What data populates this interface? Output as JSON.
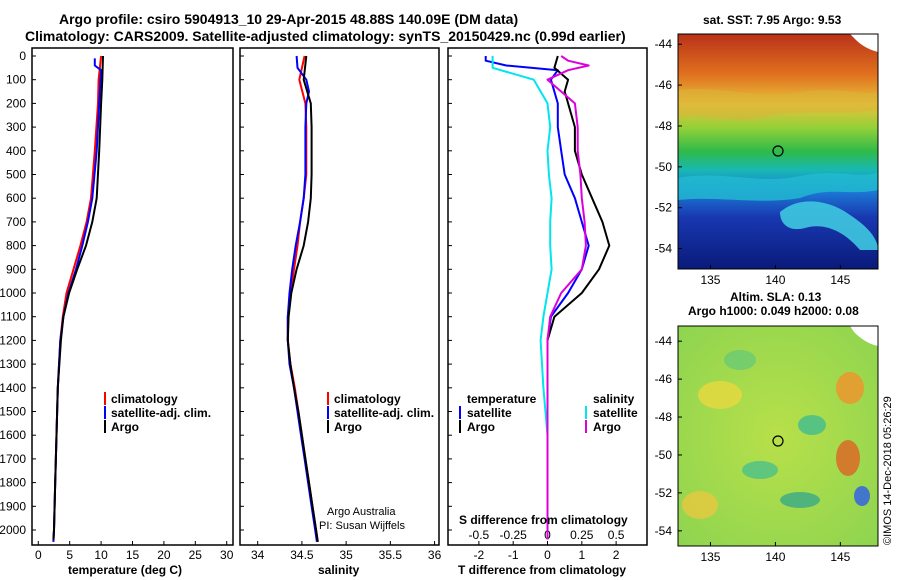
{
  "title": {
    "line1": "Argo profile: csiro 5904913_10 29-Apr-2015 48.88S 140.09E (DM data)",
    "line2": "Climatology: CARS2009. Satellite-adjusted climatology: synTS_20150429.nc (0.99d earlier)"
  },
  "colors": {
    "climatology": "#ff0000",
    "satellite": "#0000ff",
    "argo": "#000000",
    "sat_salinity": "#00e5ee",
    "argo_salinity": "#dd00dd"
  },
  "depth_ticks": [
    "0",
    "100",
    "200",
    "300",
    "400",
    "500",
    "600",
    "700",
    "800",
    "900",
    "1000",
    "1100",
    "1200",
    "1300",
    "1400",
    "1500",
    "1600",
    "1700",
    "1800",
    "1900",
    "2000"
  ],
  "panel_temp": {
    "xlabel": "temperature (deg C)",
    "xticks": [
      "0",
      "5",
      "10",
      "15",
      "20",
      "25",
      "30"
    ],
    "legend": [
      "climatology",
      "satellite-adj. clim.",
      "Argo"
    ]
  },
  "panel_sal": {
    "xlabel": "salinity",
    "xticks": [
      "34",
      "34.5",
      "35",
      "35.5",
      "36"
    ],
    "legend": [
      "climatology",
      "satellite-adj. clim.",
      "Argo"
    ],
    "credit1": "Argo Australia",
    "credit2": "PI: Susan Wijffels"
  },
  "panel_diff": {
    "xlabel": "T difference from climatology",
    "xticks": [
      "-2",
      "-1",
      "0",
      "1",
      "2"
    ],
    "s_label": "S difference from climatology",
    "s_ticks": [
      "-0.5",
      "-0.25",
      "0",
      "0.25",
      "0.5"
    ],
    "legend_temp_head": "temperature",
    "legend_sal_head": "salinity",
    "legend_sat": "satellite",
    "legend_argo": "Argo"
  },
  "map_sst": {
    "title": "sat. SST: 7.95 Argo: 9.53",
    "yticks": [
      "-44",
      "-46",
      "-48",
      "-50",
      "-52",
      "-54"
    ],
    "xticks": [
      "135",
      "140",
      "145"
    ]
  },
  "map_sla": {
    "title1": "Altim. SLA: 0.13",
    "title2": "Argo h1000: 0.049 h2000: 0.08",
    "yticks": [
      "-44",
      "-46",
      "-48",
      "-50",
      "-52",
      "-54"
    ],
    "xticks": [
      "135",
      "140",
      "145"
    ]
  },
  "stamp": "©IMOS 14-Dec-2018 05:26:29",
  "chart_data": [
    {
      "type": "line",
      "xlabel": "temperature (deg C)",
      "xlim": [
        -1,
        31
      ],
      "ylim": [
        2050,
        0
      ],
      "series": [
        {
          "name": "climatology",
          "depth": [
            0,
            100,
            200,
            400,
            600,
            700,
            800,
            900,
            1000,
            1100,
            1200,
            1400,
            1600,
            1800,
            2000,
            2050
          ],
          "values": [
            10,
            9.6,
            9.5,
            9.0,
            8.4,
            7.7,
            6.7,
            5.6,
            4.5,
            3.9,
            3.5,
            3.1,
            2.9,
            2.7,
            2.5,
            2.4
          ]
        },
        {
          "name": "satellite-adj. clim.",
          "depth": [
            10,
            40,
            60,
            100,
            200,
            400,
            600,
            700,
            800,
            900,
            1000,
            1100,
            1200,
            1400,
            1600,
            1800,
            2000,
            2050
          ],
          "values": [
            9,
            9,
            10,
            9.9,
            9.7,
            9.3,
            8.6,
            7.9,
            7.0,
            6.0,
            4.8,
            4.0,
            3.5,
            3.1,
            2.9,
            2.7,
            2.5,
            2.4
          ]
        },
        {
          "name": "Argo",
          "depth": [
            0,
            100,
            200,
            400,
            600,
            700,
            800,
            900,
            1000,
            1100,
            1200,
            1400,
            1600,
            1800,
            2000,
            2040
          ],
          "values": [
            10.3,
            10.2,
            10.0,
            9.7,
            9.3,
            8.6,
            7.6,
            6.2,
            4.9,
            4.0,
            3.6,
            3.1,
            2.9,
            2.7,
            2.5,
            2.4
          ]
        }
      ]
    },
    {
      "type": "line",
      "xlabel": "salinity",
      "xlim": [
        33.8,
        36.05
      ],
      "ylim": [
        2050,
        0
      ],
      "series": [
        {
          "name": "climatology",
          "depth": [
            0,
            100,
            200,
            300,
            500,
            600,
            700,
            800,
            900,
            1000,
            1100,
            1200,
            1300,
            1400,
            1500,
            1600,
            1700,
            1800,
            1900,
            2000,
            2050
          ],
          "values": [
            34.53,
            34.47,
            34.54,
            34.55,
            34.55,
            34.52,
            34.48,
            34.45,
            34.41,
            34.37,
            34.34,
            34.34,
            34.37,
            34.42,
            34.46,
            34.5,
            34.54,
            34.58,
            34.62,
            34.66,
            34.68
          ]
        },
        {
          "name": "satellite-adj. clim.",
          "depth": [
            0,
            50,
            100,
            150,
            200,
            300,
            500,
            600,
            700,
            800,
            900,
            1000,
            1100,
            1200,
            1300,
            1400,
            1500,
            1600,
            1700,
            1800,
            1900,
            2000,
            2050
          ],
          "values": [
            34.44,
            34.45,
            34.55,
            34.58,
            34.55,
            34.54,
            34.54,
            34.52,
            34.48,
            34.43,
            34.39,
            34.36,
            34.34,
            34.34,
            34.36,
            34.41,
            34.45,
            34.49,
            34.53,
            34.57,
            34.61,
            34.65,
            34.67
          ]
        },
        {
          "name": "Argo",
          "depth": [
            0,
            100,
            150,
            200,
            300,
            500,
            600,
            700,
            800,
            900,
            1000,
            1100,
            1200,
            1300,
            1400,
            1500,
            1600,
            1700,
            1800,
            1900,
            2000,
            2050
          ],
          "values": [
            34.55,
            34.52,
            34.56,
            34.6,
            34.61,
            34.61,
            34.6,
            34.57,
            34.52,
            34.44,
            34.38,
            34.35,
            34.34,
            34.37,
            34.41,
            34.46,
            34.5,
            34.54,
            34.58,
            34.62,
            34.66,
            34.68
          ]
        }
      ]
    },
    {
      "type": "line",
      "xlabel": "T difference from climatology",
      "xlim": [
        -2.9,
        2.9
      ],
      "ylim": [
        2050,
        0
      ],
      "series": [
        {
          "name": "temperature satellite",
          "depth": [
            0,
            20,
            40,
            60,
            100,
            200,
            300,
            400,
            500,
            600,
            700,
            800,
            900,
            1000,
            1100,
            1200,
            1400,
            1600,
            1800,
            2000,
            2040
          ],
          "values": [
            -1.8,
            -1.8,
            -1.2,
            0.3,
            0.1,
            0.3,
            0.3,
            0.4,
            0.5,
            0.8,
            1.0,
            1.2,
            1.0,
            0.6,
            0.1,
            0.0,
            0.0,
            0.0,
            0.0,
            0.0,
            0.0
          ]
        },
        {
          "name": "temperature Argo",
          "depth": [
            0,
            50,
            100,
            150,
            200,
            300,
            400,
            500,
            600,
            700,
            800,
            900,
            1000,
            1100,
            1200,
            1400,
            1600,
            1800,
            2000,
            2040
          ],
          "values": [
            0.3,
            0.2,
            0.6,
            0.5,
            0.6,
            0.8,
            0.8,
            1.0,
            1.3,
            1.6,
            1.8,
            1.5,
            1.0,
            0.2,
            0.0,
            0.0,
            0.0,
            0.0,
            0.0,
            0.0
          ]
        },
        {
          "name": "salinity satellite",
          "depth": [
            0,
            50,
            100,
            200,
            300,
            400,
            500,
            600,
            700,
            800,
            900,
            1000,
            1100,
            1200,
            1400,
            1600,
            1800,
            2000,
            2040
          ],
          "values": [
            -0.4,
            -0.4,
            -0.1,
            0.0,
            0.02,
            0.0,
            0.01,
            0.03,
            0.02,
            0.02,
            0.03,
            0.0,
            -0.03,
            -0.05,
            -0.03,
            0.0,
            0.0,
            0.0,
            0.0
          ]
        },
        {
          "name": "salinity Argo",
          "depth": [
            0,
            20,
            40,
            60,
            100,
            200,
            300,
            400,
            500,
            600,
            700,
            800,
            900,
            1000,
            1100,
            1200,
            1400,
            1600,
            1800,
            2000,
            2040
          ],
          "values": [
            0.1,
            0.15,
            0.3,
            0.15,
            0.0,
            0.2,
            0.22,
            0.22,
            0.24,
            0.25,
            0.27,
            0.28,
            0.25,
            0.1,
            0.02,
            0.0,
            0.0,
            0.0,
            0.0,
            0.0,
            0.0
          ]
        }
      ]
    }
  ]
}
